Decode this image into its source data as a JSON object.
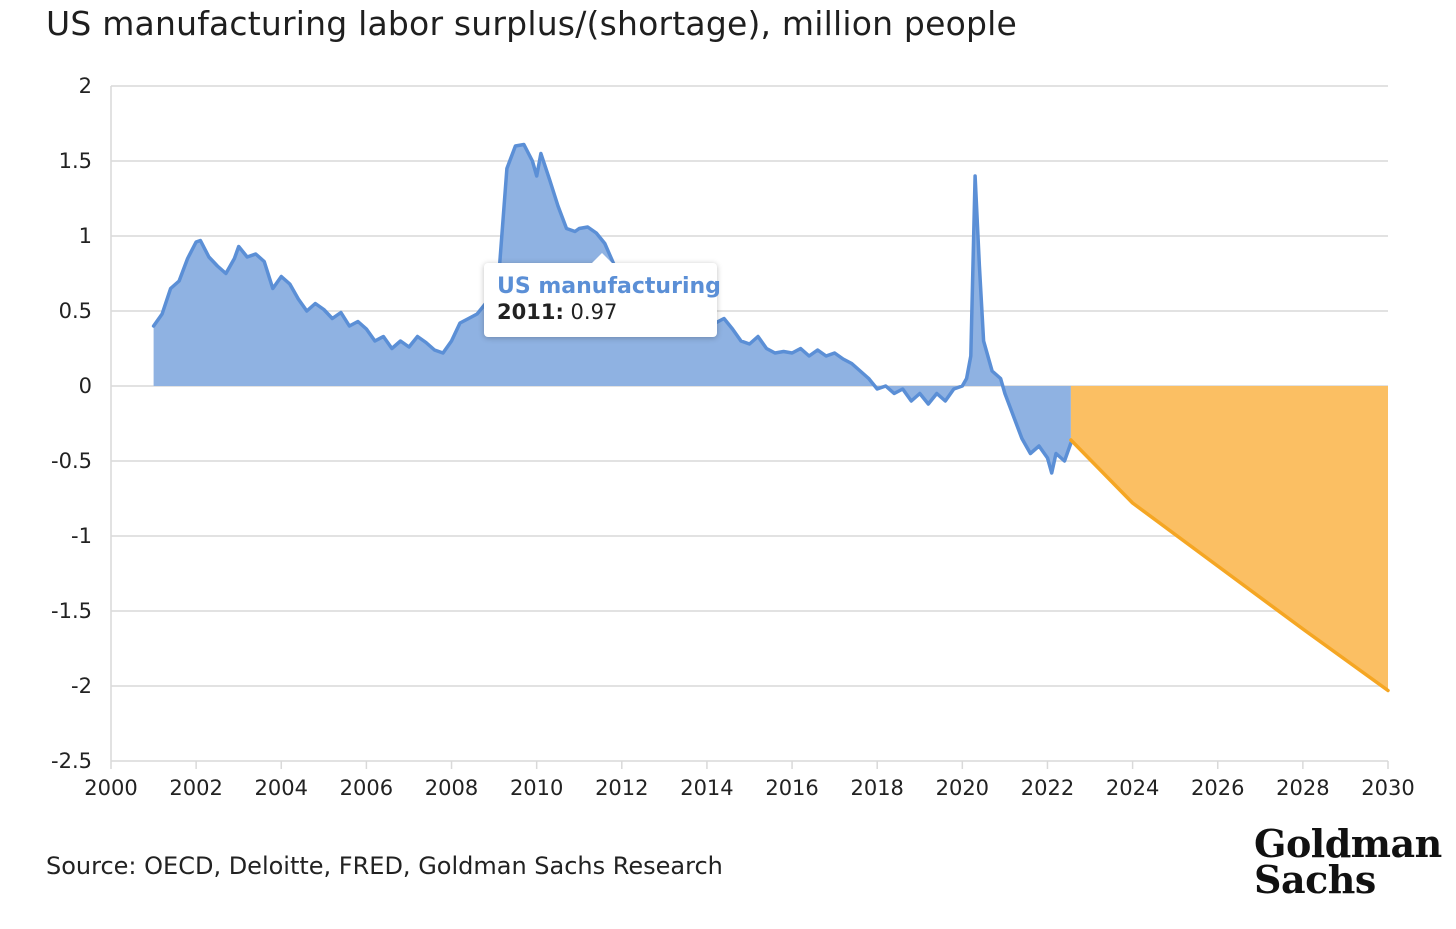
{
  "title": "US manufacturing labor surplus/(shortage), million people",
  "source": "Source: OECD, Deloitte, FRED, Goldman Sachs Research",
  "logo": {
    "line1": "Goldman",
    "line2": "Sachs"
  },
  "tooltip": {
    "series": "US manufacturing",
    "year_label": "2011:",
    "value": "0.97"
  },
  "colors": {
    "historical_line": "#5b8fd6",
    "historical_fill": "#8fb2e2",
    "forecast_line": "#f5a623",
    "forecast_fill": "#fbbf63",
    "grid": "#d9d9d9"
  },
  "chart_data": {
    "type": "area",
    "title": "US manufacturing labor surplus/(shortage), million people",
    "xlabel": "",
    "ylabel": "",
    "xlim": [
      2000,
      2030
    ],
    "ylim": [
      -2.5,
      2
    ],
    "x_ticks": [
      "2000",
      "2002",
      "2004",
      "2006",
      "2008",
      "2010",
      "2012",
      "2014",
      "2016",
      "2018",
      "2020",
      "2022",
      "2024",
      "2026",
      "2028",
      "2030"
    ],
    "y_ticks": [
      "2",
      "1.5",
      "1",
      "0.5",
      "0",
      "-0.5",
      "-1",
      "-1.5",
      "-2",
      "-2.5"
    ],
    "grid": true,
    "series": [
      {
        "name": "US manufacturing",
        "x": [
          2001.0,
          2001.2,
          2001.4,
          2001.6,
          2001.8,
          2002.0,
          2002.1,
          2002.3,
          2002.5,
          2002.7,
          2002.9,
          2003.0,
          2003.2,
          2003.4,
          2003.6,
          2003.8,
          2004.0,
          2004.2,
          2004.4,
          2004.6,
          2004.8,
          2005.0,
          2005.2,
          2005.4,
          2005.6,
          2005.8,
          2006.0,
          2006.2,
          2006.4,
          2006.6,
          2006.8,
          2007.0,
          2007.2,
          2007.4,
          2007.6,
          2007.8,
          2008.0,
          2008.2,
          2008.4,
          2008.6,
          2008.8,
          2009.0,
          2009.1,
          2009.3,
          2009.5,
          2009.7,
          2009.9,
          2010.0,
          2010.1,
          2010.3,
          2010.5,
          2010.7,
          2010.9,
          2011.0,
          2011.2,
          2011.4,
          2011.6,
          2011.8,
          2012.0,
          2012.2,
          2012.4,
          2012.6,
          2012.8,
          2013.0,
          2013.2,
          2013.4,
          2013.6,
          2013.8,
          2014.0,
          2014.2,
          2014.4,
          2014.6,
          2014.8,
          2015.0,
          2015.2,
          2015.4,
          2015.6,
          2015.8,
          2016.0,
          2016.2,
          2016.4,
          2016.6,
          2016.8,
          2017.0,
          2017.2,
          2017.4,
          2017.6,
          2017.8,
          2018.0,
          2018.2,
          2018.4,
          2018.6,
          2018.8,
          2019.0,
          2019.2,
          2019.4,
          2019.6,
          2019.8,
          2020.0,
          2020.1,
          2020.2,
          2020.3,
          2020.4,
          2020.5,
          2020.7,
          2020.9,
          2021.0,
          2021.2,
          2021.4,
          2021.6,
          2021.8,
          2022.0,
          2022.1,
          2022.2,
          2022.4,
          2022.55
        ],
        "y": [
          0.4,
          0.48,
          0.65,
          0.7,
          0.85,
          0.96,
          0.97,
          0.86,
          0.8,
          0.75,
          0.85,
          0.93,
          0.86,
          0.88,
          0.83,
          0.65,
          0.73,
          0.68,
          0.58,
          0.5,
          0.55,
          0.51,
          0.45,
          0.49,
          0.4,
          0.43,
          0.38,
          0.3,
          0.33,
          0.25,
          0.3,
          0.26,
          0.33,
          0.29,
          0.24,
          0.22,
          0.3,
          0.42,
          0.45,
          0.48,
          0.55,
          0.66,
          0.7,
          1.45,
          1.6,
          1.61,
          1.5,
          1.4,
          1.55,
          1.38,
          1.2,
          1.05,
          1.03,
          1.05,
          1.06,
          1.02,
          0.95,
          0.82,
          0.7,
          0.73,
          0.6,
          0.55,
          0.43,
          0.4,
          0.45,
          0.36,
          0.4,
          0.35,
          0.38,
          0.42,
          0.45,
          0.38,
          0.3,
          0.28,
          0.33,
          0.25,
          0.22,
          0.23,
          0.22,
          0.25,
          0.2,
          0.24,
          0.2,
          0.22,
          0.18,
          0.15,
          0.1,
          0.05,
          -0.02,
          0.0,
          -0.05,
          -0.02,
          -0.1,
          -0.05,
          -0.12,
          -0.05,
          -0.1,
          -0.02,
          0.0,
          0.05,
          0.2,
          1.4,
          0.8,
          0.3,
          0.1,
          0.05,
          -0.05,
          -0.2,
          -0.35,
          -0.45,
          -0.4,
          -0.48,
          -0.58,
          -0.45,
          -0.5,
          -0.38
        ]
      },
      {
        "name": "",
        "x": [
          2022.55,
          2024,
          2026,
          2028,
          2030
        ],
        "y": [
          -0.36,
          -0.78,
          -1.2,
          -1.62,
          -2.03
        ]
      }
    ]
  }
}
